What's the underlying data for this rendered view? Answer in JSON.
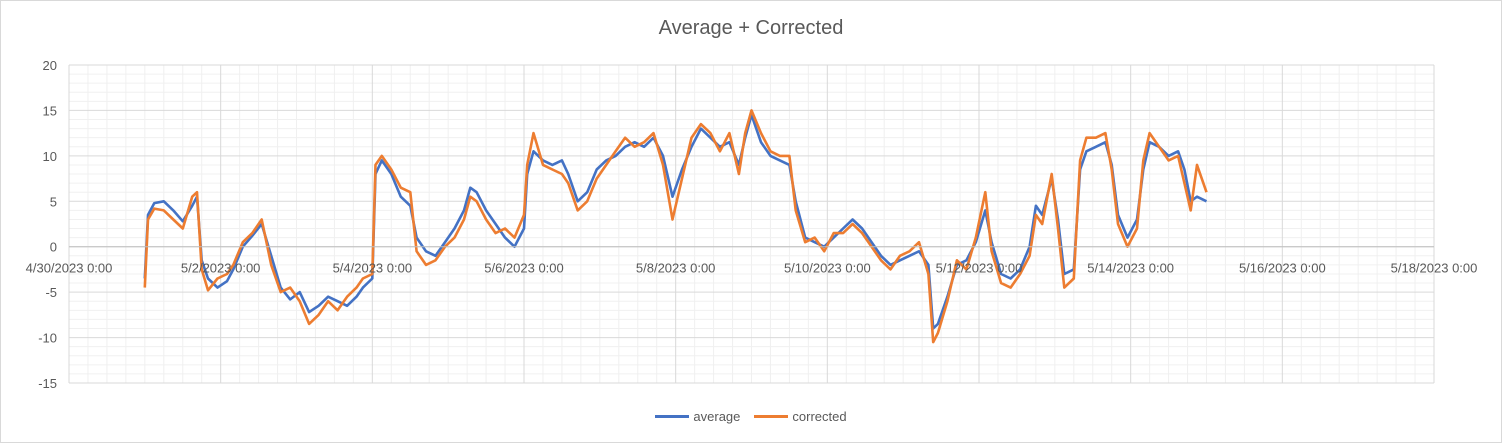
{
  "chart_data": {
    "type": "line",
    "title": "Average + Corrected",
    "xlabel": "",
    "ylabel": "",
    "ylim": [
      -15,
      20
    ],
    "yticks": [
      20,
      15,
      10,
      5,
      0,
      -5,
      -10,
      -15
    ],
    "xrange": [
      "2023-04-30 00:00",
      "2023-05-18 00:00"
    ],
    "xtick_labels": [
      "4/30/2023 0:00",
      "5/2/2023 0:00",
      "5/4/2023 0:00",
      "5/6/2023 0:00",
      "5/8/2023 0:00",
      "5/10/2023 0:00",
      "5/12/2023 0:00",
      "5/14/2023 0:00",
      "5/16/2023 0:00",
      "5/18/2023 0:00"
    ],
    "grid": true,
    "legend": "bottom",
    "series": [
      {
        "name": "average",
        "color": "#4472c4",
        "points": [
          [
            "2023-05-01 00:00",
            -3.5
          ],
          [
            "2023-05-01 01:00",
            3.5
          ],
          [
            "2023-05-01 03:00",
            4.8
          ],
          [
            "2023-05-01 06:00",
            5.0
          ],
          [
            "2023-05-01 09:00",
            4.0
          ],
          [
            "2023-05-01 12:00",
            2.8
          ],
          [
            "2023-05-01 15:00",
            4.5
          ],
          [
            "2023-05-01 16:30",
            5.5
          ],
          [
            "2023-05-01 18:00",
            -1.5
          ],
          [
            "2023-05-01 20:00",
            -3.5
          ],
          [
            "2023-05-01 23:00",
            -4.5
          ],
          [
            "2023-05-02 02:00",
            -3.8
          ],
          [
            "2023-05-02 04:00",
            -2.5
          ],
          [
            "2023-05-02 07:00",
            0.0
          ],
          [
            "2023-05-02 10:00",
            1.2
          ],
          [
            "2023-05-02 13:00",
            2.5
          ],
          [
            "2023-05-02 16:00",
            -1.0
          ],
          [
            "2023-05-02 19:00",
            -4.5
          ],
          [
            "2023-05-02 22:00",
            -5.8
          ],
          [
            "2023-05-03 01:00",
            -5.0
          ],
          [
            "2023-05-03 04:00",
            -7.2
          ],
          [
            "2023-05-03 07:00",
            -6.5
          ],
          [
            "2023-05-03 10:00",
            -5.5
          ],
          [
            "2023-05-03 13:00",
            -6.0
          ],
          [
            "2023-05-03 16:00",
            -6.5
          ],
          [
            "2023-05-03 19:00",
            -5.5
          ],
          [
            "2023-05-03 21:00",
            -4.5
          ],
          [
            "2023-05-04 00:00",
            -3.5
          ],
          [
            "2023-05-04 01:00",
            8.0
          ],
          [
            "2023-05-04 03:00",
            9.5
          ],
          [
            "2023-05-04 06:00",
            8.0
          ],
          [
            "2023-05-04 09:00",
            5.5
          ],
          [
            "2023-05-04 12:00",
            4.5
          ],
          [
            "2023-05-04 14:00",
            1.0
          ],
          [
            "2023-05-04 17:00",
            -0.5
          ],
          [
            "2023-05-04 20:00",
            -1.0
          ],
          [
            "2023-05-04 23:00",
            0.5
          ],
          [
            "2023-05-05 02:00",
            2.0
          ],
          [
            "2023-05-05 05:00",
            4.0
          ],
          [
            "2023-05-05 07:00",
            6.5
          ],
          [
            "2023-05-05 09:00",
            6.0
          ],
          [
            "2023-05-05 12:00",
            4.0
          ],
          [
            "2023-05-05 15:00",
            2.5
          ],
          [
            "2023-05-05 18:00",
            1.0
          ],
          [
            "2023-05-05 21:00",
            0.0
          ],
          [
            "2023-05-06 00:00",
            2.0
          ],
          [
            "2023-05-06 01:00",
            8.0
          ],
          [
            "2023-05-06 03:00",
            10.5
          ],
          [
            "2023-05-06 06:00",
            9.5
          ],
          [
            "2023-05-06 09:00",
            9.0
          ],
          [
            "2023-05-06 12:00",
            9.5
          ],
          [
            "2023-05-06 14:00",
            8.0
          ],
          [
            "2023-05-06 17:00",
            5.0
          ],
          [
            "2023-05-06 20:00",
            6.0
          ],
          [
            "2023-05-06 23:00",
            8.5
          ],
          [
            "2023-05-07 02:00",
            9.5
          ],
          [
            "2023-05-07 05:00",
            10.0
          ],
          [
            "2023-05-07 08:00",
            11.0
          ],
          [
            "2023-05-07 11:00",
            11.5
          ],
          [
            "2023-05-07 14:00",
            11.0
          ],
          [
            "2023-05-07 17:00",
            12.0
          ],
          [
            "2023-05-07 20:00",
            10.0
          ],
          [
            "2023-05-07 23:00",
            5.5
          ],
          [
            "2023-05-08 02:00",
            8.5
          ],
          [
            "2023-05-08 05:00",
            11.0
          ],
          [
            "2023-05-08 08:00",
            13.0
          ],
          [
            "2023-05-08 11:00",
            12.0
          ],
          [
            "2023-05-08 14:00",
            11.0
          ],
          [
            "2023-05-08 17:00",
            11.5
          ],
          [
            "2023-05-08 20:00",
            9.0
          ],
          [
            "2023-05-08 22:00",
            12.0
          ],
          [
            "2023-05-09 00:00",
            14.5
          ],
          [
            "2023-05-09 03:00",
            11.5
          ],
          [
            "2023-05-09 06:00",
            10.0
          ],
          [
            "2023-05-09 09:00",
            9.5
          ],
          [
            "2023-05-09 12:00",
            9.0
          ],
          [
            "2023-05-09 14:00",
            5.0
          ],
          [
            "2023-05-09 17:00",
            1.0
          ],
          [
            "2023-05-09 20:00",
            0.5
          ],
          [
            "2023-05-09 23:00",
            0.0
          ],
          [
            "2023-05-10 02:00",
            1.0
          ],
          [
            "2023-05-10 05:00",
            2.0
          ],
          [
            "2023-05-10 08:00",
            3.0
          ],
          [
            "2023-05-10 11:00",
            2.0
          ],
          [
            "2023-05-10 14:00",
            0.5
          ],
          [
            "2023-05-10 17:00",
            -1.0
          ],
          [
            "2023-05-10 20:00",
            -2.0
          ],
          [
            "2023-05-10 23:00",
            -1.5
          ],
          [
            "2023-05-11 02:00",
            -1.0
          ],
          [
            "2023-05-11 05:00",
            -0.5
          ],
          [
            "2023-05-11 08:00",
            -2.0
          ],
          [
            "2023-05-11 09:30",
            -9.0
          ],
          [
            "2023-05-11 11:00",
            -8.5
          ],
          [
            "2023-05-11 14:00",
            -5.5
          ],
          [
            "2023-05-11 17:00",
            -2.0
          ],
          [
            "2023-05-11 20:00",
            -1.5
          ],
          [
            "2023-05-11 23:00",
            0.5
          ],
          [
            "2023-05-12 02:00",
            4.0
          ],
          [
            "2023-05-12 04:00",
            0.5
          ],
          [
            "2023-05-12 07:00",
            -3.0
          ],
          [
            "2023-05-12 10:00",
            -3.5
          ],
          [
            "2023-05-12 13:00",
            -2.5
          ],
          [
            "2023-05-12 16:00",
            0.0
          ],
          [
            "2023-05-12 18:00",
            4.5
          ],
          [
            "2023-05-12 20:00",
            3.5
          ],
          [
            "2023-05-12 23:00",
            7.5
          ],
          [
            "2023-05-13 01:00",
            3.0
          ],
          [
            "2023-05-13 03:00",
            -3.0
          ],
          [
            "2023-05-13 06:00",
            -2.5
          ],
          [
            "2023-05-13 08:00",
            8.5
          ],
          [
            "2023-05-13 10:00",
            10.5
          ],
          [
            "2023-05-13 13:00",
            11.0
          ],
          [
            "2023-05-13 16:00",
            11.5
          ],
          [
            "2023-05-13 18:00",
            9.0
          ],
          [
            "2023-05-13 20:00",
            3.5
          ],
          [
            "2023-05-13 23:00",
            1.0
          ],
          [
            "2023-05-14 02:00",
            3.0
          ],
          [
            "2023-05-14 04:00",
            8.5
          ],
          [
            "2023-05-14 06:00",
            11.5
          ],
          [
            "2023-05-14 09:00",
            11.0
          ],
          [
            "2023-05-14 12:00",
            10.0
          ],
          [
            "2023-05-14 15:00",
            10.5
          ],
          [
            "2023-05-14 17:00",
            8.5
          ],
          [
            "2023-05-14 19:00",
            5.0
          ],
          [
            "2023-05-14 21:00",
            5.5
          ],
          [
            "2023-05-15 00:00",
            5.0
          ]
        ]
      },
      {
        "name": "corrected",
        "color": "#ed7d31",
        "points": [
          [
            "2023-05-01 00:00",
            -4.5
          ],
          [
            "2023-05-01 01:00",
            3.0
          ],
          [
            "2023-05-01 03:00",
            4.2
          ],
          [
            "2023-05-01 06:00",
            4.0
          ],
          [
            "2023-05-01 09:00",
            3.0
          ],
          [
            "2023-05-01 12:00",
            2.0
          ],
          [
            "2023-05-01 15:00",
            5.5
          ],
          [
            "2023-05-01 16:30",
            6.0
          ],
          [
            "2023-05-01 18:00",
            -2.5
          ],
          [
            "2023-05-01 20:00",
            -4.8
          ],
          [
            "2023-05-01 23:00",
            -3.5
          ],
          [
            "2023-05-02 02:00",
            -3.0
          ],
          [
            "2023-05-02 04:00",
            -2.0
          ],
          [
            "2023-05-02 07:00",
            0.5
          ],
          [
            "2023-05-02 10:00",
            1.5
          ],
          [
            "2023-05-02 13:00",
            3.0
          ],
          [
            "2023-05-02 16:00",
            -2.0
          ],
          [
            "2023-05-02 19:00",
            -5.0
          ],
          [
            "2023-05-02 22:00",
            -4.5
          ],
          [
            "2023-05-03 01:00",
            -6.0
          ],
          [
            "2023-05-03 04:00",
            -8.5
          ],
          [
            "2023-05-03 07:00",
            -7.5
          ],
          [
            "2023-05-03 10:00",
            -6.0
          ],
          [
            "2023-05-03 13:00",
            -7.0
          ],
          [
            "2023-05-03 16:00",
            -5.5
          ],
          [
            "2023-05-03 19:00",
            -4.5
          ],
          [
            "2023-05-03 21:00",
            -3.5
          ],
          [
            "2023-05-04 00:00",
            -3.0
          ],
          [
            "2023-05-04 01:00",
            9.0
          ],
          [
            "2023-05-04 03:00",
            10.0
          ],
          [
            "2023-05-04 06:00",
            8.5
          ],
          [
            "2023-05-04 09:00",
            6.5
          ],
          [
            "2023-05-04 12:00",
            6.0
          ],
          [
            "2023-05-04 14:00",
            -0.5
          ],
          [
            "2023-05-04 17:00",
            -2.0
          ],
          [
            "2023-05-04 20:00",
            -1.5
          ],
          [
            "2023-05-04 23:00",
            0.0
          ],
          [
            "2023-05-05 02:00",
            1.0
          ],
          [
            "2023-05-05 05:00",
            3.0
          ],
          [
            "2023-05-05 07:00",
            5.5
          ],
          [
            "2023-05-05 09:00",
            5.0
          ],
          [
            "2023-05-05 12:00",
            3.0
          ],
          [
            "2023-05-05 15:00",
            1.5
          ],
          [
            "2023-05-05 18:00",
            2.0
          ],
          [
            "2023-05-05 21:00",
            1.0
          ],
          [
            "2023-05-06 00:00",
            3.5
          ],
          [
            "2023-05-06 01:00",
            9.0
          ],
          [
            "2023-05-06 03:00",
            12.5
          ],
          [
            "2023-05-06 06:00",
            9.0
          ],
          [
            "2023-05-06 09:00",
            8.5
          ],
          [
            "2023-05-06 12:00",
            8.0
          ],
          [
            "2023-05-06 14:00",
            7.0
          ],
          [
            "2023-05-06 17:00",
            4.0
          ],
          [
            "2023-05-06 20:00",
            5.0
          ],
          [
            "2023-05-06 23:00",
            7.5
          ],
          [
            "2023-05-07 02:00",
            9.0
          ],
          [
            "2023-05-07 05:00",
            10.5
          ],
          [
            "2023-05-07 08:00",
            12.0
          ],
          [
            "2023-05-07 11:00",
            11.0
          ],
          [
            "2023-05-07 14:00",
            11.5
          ],
          [
            "2023-05-07 17:00",
            12.5
          ],
          [
            "2023-05-07 20:00",
            9.0
          ],
          [
            "2023-05-07 23:00",
            3.0
          ],
          [
            "2023-05-08 02:00",
            7.5
          ],
          [
            "2023-05-08 05:00",
            12.0
          ],
          [
            "2023-05-08 08:00",
            13.5
          ],
          [
            "2023-05-08 11:00",
            12.5
          ],
          [
            "2023-05-08 14:00",
            10.5
          ],
          [
            "2023-05-08 17:00",
            12.5
          ],
          [
            "2023-05-08 20:00",
            8.0
          ],
          [
            "2023-05-08 22:00",
            12.5
          ],
          [
            "2023-05-09 00:00",
            15.0
          ],
          [
            "2023-05-09 03:00",
            12.5
          ],
          [
            "2023-05-09 06:00",
            10.5
          ],
          [
            "2023-05-09 09:00",
            10.0
          ],
          [
            "2023-05-09 12:00",
            10.0
          ],
          [
            "2023-05-09 14:00",
            4.0
          ],
          [
            "2023-05-09 17:00",
            0.5
          ],
          [
            "2023-05-09 20:00",
            1.0
          ],
          [
            "2023-05-09 23:00",
            -0.5
          ],
          [
            "2023-05-10 02:00",
            1.5
          ],
          [
            "2023-05-10 05:00",
            1.5
          ],
          [
            "2023-05-10 08:00",
            2.5
          ],
          [
            "2023-05-10 11:00",
            1.5
          ],
          [
            "2023-05-10 14:00",
            0.0
          ],
          [
            "2023-05-10 17:00",
            -1.5
          ],
          [
            "2023-05-10 20:00",
            -2.5
          ],
          [
            "2023-05-10 23:00",
            -1.0
          ],
          [
            "2023-05-11 02:00",
            -0.5
          ],
          [
            "2023-05-11 05:00",
            0.5
          ],
          [
            "2023-05-11 08:00",
            -3.0
          ],
          [
            "2023-05-11 09:30",
            -10.5
          ],
          [
            "2023-05-11 11:00",
            -9.5
          ],
          [
            "2023-05-11 14:00",
            -6.0
          ],
          [
            "2023-05-11 17:00",
            -1.5
          ],
          [
            "2023-05-11 20:00",
            -2.5
          ],
          [
            "2023-05-11 23:00",
            1.0
          ],
          [
            "2023-05-12 02:00",
            6.0
          ],
          [
            "2023-05-12 04:00",
            -0.5
          ],
          [
            "2023-05-12 07:00",
            -4.0
          ],
          [
            "2023-05-12 10:00",
            -4.5
          ],
          [
            "2023-05-12 13:00",
            -3.0
          ],
          [
            "2023-05-12 16:00",
            -1.0
          ],
          [
            "2023-05-12 18:00",
            3.5
          ],
          [
            "2023-05-12 20:00",
            2.5
          ],
          [
            "2023-05-12 23:00",
            8.0
          ],
          [
            "2023-05-13 01:00",
            2.0
          ],
          [
            "2023-05-13 03:00",
            -4.5
          ],
          [
            "2023-05-13 06:00",
            -3.5
          ],
          [
            "2023-05-13 08:00",
            9.5
          ],
          [
            "2023-05-13 10:00",
            12.0
          ],
          [
            "2023-05-13 13:00",
            12.0
          ],
          [
            "2023-05-13 16:00",
            12.5
          ],
          [
            "2023-05-13 18:00",
            8.5
          ],
          [
            "2023-05-13 20:00",
            2.5
          ],
          [
            "2023-05-13 23:00",
            0.0
          ],
          [
            "2023-05-14 02:00",
            2.0
          ],
          [
            "2023-05-14 04:00",
            9.5
          ],
          [
            "2023-05-14 06:00",
            12.5
          ],
          [
            "2023-05-14 09:00",
            11.0
          ],
          [
            "2023-05-14 12:00",
            9.5
          ],
          [
            "2023-05-14 15:00",
            10.0
          ],
          [
            "2023-05-14 17:00",
            7.0
          ],
          [
            "2023-05-14 19:00",
            4.0
          ],
          [
            "2023-05-14 21:00",
            9.0
          ],
          [
            "2023-05-15 00:00",
            6.0
          ]
        ]
      }
    ]
  }
}
